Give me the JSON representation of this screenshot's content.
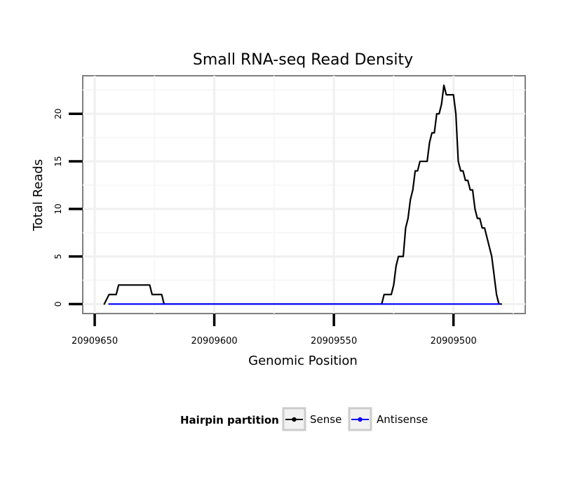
{
  "chart_data": {
    "type": "line",
    "title": "Small RNA-seq Read Density",
    "xlabel": "Genomic Position",
    "ylabel": "Total Reads",
    "x_reversed": true,
    "xlim": [
      20909655,
      20909470
    ],
    "ylim": [
      -1,
      24
    ],
    "xticks": [
      20909650,
      20909600,
      20909550,
      20909500
    ],
    "xtick_labels": [
      "20909650",
      "20909600",
      "20909550",
      "20909500"
    ],
    "yticks": [
      0,
      5,
      10,
      15,
      20
    ],
    "ytick_labels": [
      "0",
      "5",
      "10",
      "15",
      "20"
    ],
    "grid": true,
    "legend": {
      "title": "Hairpin partition",
      "position": "bottom",
      "entries": [
        {
          "name": "Sense",
          "color": "#000000"
        },
        {
          "name": "Antisense",
          "color": "#0000ff"
        }
      ]
    },
    "series": [
      {
        "name": "Sense",
        "color": "#000000",
        "points": [
          [
            20909646,
            0
          ],
          [
            20909644,
            1
          ],
          [
            20909641,
            1
          ],
          [
            20909640,
            2
          ],
          [
            20909628,
            2
          ],
          [
            20909627,
            2
          ],
          [
            20909626,
            1
          ],
          [
            20909623,
            1
          ],
          [
            20909622,
            1
          ],
          [
            20909621,
            0
          ],
          [
            20909530,
            0
          ],
          [
            20909529,
            1
          ],
          [
            20909526,
            1
          ],
          [
            20909525,
            2
          ],
          [
            20909524,
            4
          ],
          [
            20909523,
            5
          ],
          [
            20909521,
            5
          ],
          [
            20909520,
            8
          ],
          [
            20909519,
            9
          ],
          [
            20909518,
            11
          ],
          [
            20909517,
            12
          ],
          [
            20909516,
            14
          ],
          [
            20909515,
            14
          ],
          [
            20909514,
            15
          ],
          [
            20909511,
            15
          ],
          [
            20909510,
            17
          ],
          [
            20909509,
            18
          ],
          [
            20909508,
            18
          ],
          [
            20909507,
            20
          ],
          [
            20909506,
            20
          ],
          [
            20909505,
            21
          ],
          [
            20909504,
            23
          ],
          [
            20909503,
            22
          ],
          [
            20909500,
            22
          ],
          [
            20909499,
            20
          ],
          [
            20909498,
            15
          ],
          [
            20909497,
            14
          ],
          [
            20909496,
            14
          ],
          [
            20909495,
            13
          ],
          [
            20909494,
            13
          ],
          [
            20909493,
            12
          ],
          [
            20909492,
            12
          ],
          [
            20909491,
            10
          ],
          [
            20909490,
            9
          ],
          [
            20909489,
            9
          ],
          [
            20909488,
            8
          ],
          [
            20909487,
            8
          ],
          [
            20909486,
            7
          ],
          [
            20909484,
            5
          ],
          [
            20909483,
            3
          ],
          [
            20909482,
            1
          ],
          [
            20909481,
            0
          ],
          [
            20909480,
            0
          ]
        ]
      },
      {
        "name": "Antisense",
        "color": "#0000ff",
        "points": [
          [
            20909644,
            0
          ],
          [
            20909481,
            0
          ]
        ]
      }
    ]
  }
}
